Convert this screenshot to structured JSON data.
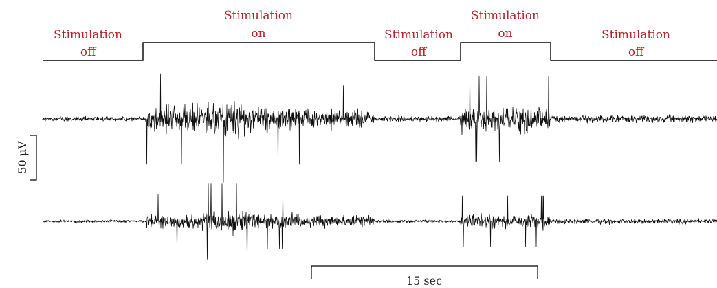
{
  "colors": {
    "label": "#b5212a",
    "trace": "#111111",
    "line": "#000000"
  },
  "phases": [
    {
      "state": "off",
      "line1": "Stimulation",
      "line2": "off"
    },
    {
      "state": "on",
      "line1": "Stimulation",
      "line2": "on"
    },
    {
      "state": "off",
      "line1": "Stimulation",
      "line2": "off"
    },
    {
      "state": "on",
      "line1": "Stimulation",
      "line2": "on"
    },
    {
      "state": "off",
      "line1": "Stimulation",
      "line2": "off"
    }
  ],
  "scale_bars": {
    "amplitude": {
      "label": "50 μV"
    },
    "time": {
      "label": "15 sec"
    }
  }
}
